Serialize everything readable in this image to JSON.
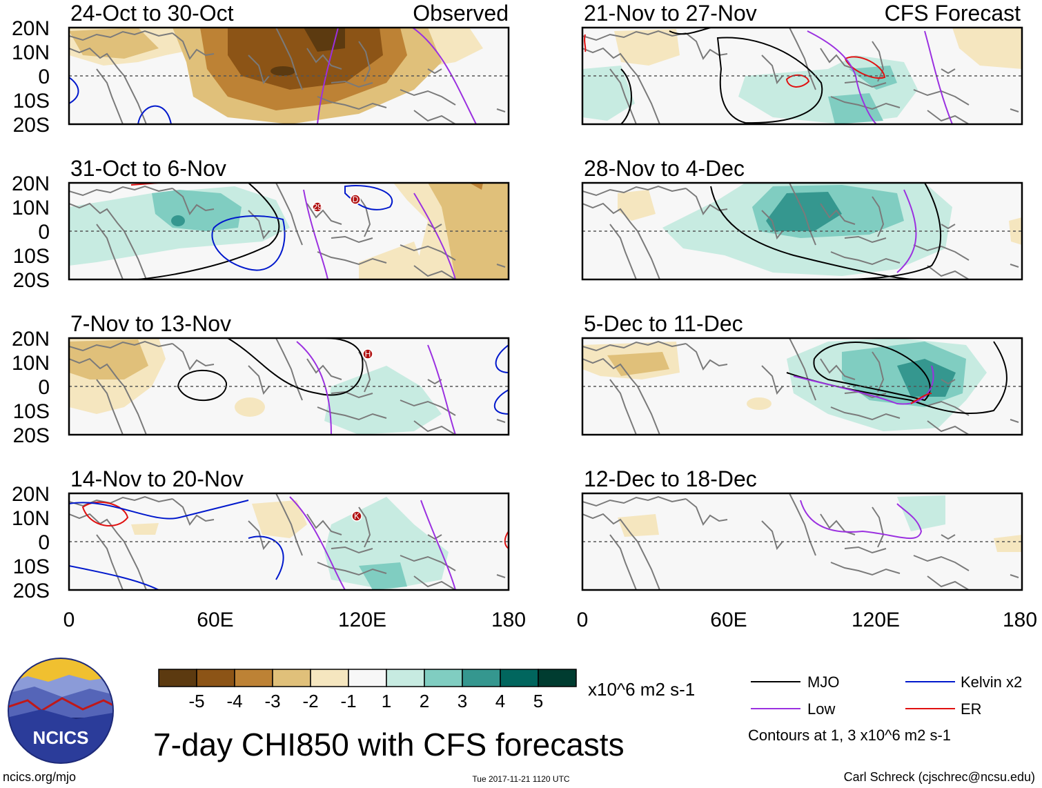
{
  "title": "7-day CHI850 with CFS forecasts",
  "observed_label": "Observed",
  "forecast_label": "CFS Forecast",
  "panels": [
    {
      "label": "24-Oct to 30-Oct",
      "column": "observed"
    },
    {
      "label": "31-Oct to 6-Nov",
      "column": "observed"
    },
    {
      "label": "7-Nov to 13-Nov",
      "column": "observed"
    },
    {
      "label": "14-Nov to 20-Nov",
      "column": "observed"
    },
    {
      "label": "21-Nov to 27-Nov",
      "column": "forecast"
    },
    {
      "label": "28-Nov to 4-Dec",
      "column": "forecast"
    },
    {
      "label": "5-Dec to 11-Dec",
      "column": "forecast"
    },
    {
      "label": "12-Dec to 18-Dec",
      "column": "forecast"
    }
  ],
  "lat_ticks": [
    "20N",
    "10N",
    "0",
    "10S",
    "20S"
  ],
  "lon_ticks": [
    "0",
    "60E",
    "120E",
    "180"
  ],
  "colorbar": {
    "labels": [
      "-5",
      "-4",
      "-3",
      "-2",
      "-1",
      "1",
      "2",
      "3",
      "4",
      "5"
    ],
    "units": "x10^6 m2 s-1",
    "colors": [
      "#5c3a10",
      "#8c5416",
      "#bd8235",
      "#e0c07a",
      "#f5e6bf",
      "#f7f7f7",
      "#c7ebe1",
      "#80cdc1",
      "#35978f",
      "#01665e",
      "#003c30"
    ]
  },
  "legend": {
    "items": [
      {
        "label": "MJO",
        "color": "#000000"
      },
      {
        "label": "Kelvin x2",
        "color": "#0018cc"
      },
      {
        "label": "Low",
        "color": "#9b30e0"
      },
      {
        "label": "ER",
        "color": "#e01010"
      }
    ],
    "note": "Contours at 1, 3 x10^6 m2 s-1"
  },
  "logo_text": "NCICS",
  "footer": {
    "left": "ncics.org/mjo",
    "center": "Tue 2017-11-21 1120 UTC",
    "right": "Carl Schreck (cjschrec@ncsu.edu)"
  },
  "storm_markers": [
    {
      "panel": 2,
      "label": "29"
    },
    {
      "panel": 2,
      "label": "D"
    },
    {
      "panel": 3,
      "label": "H"
    },
    {
      "panel": 4,
      "label": "K"
    }
  ]
}
